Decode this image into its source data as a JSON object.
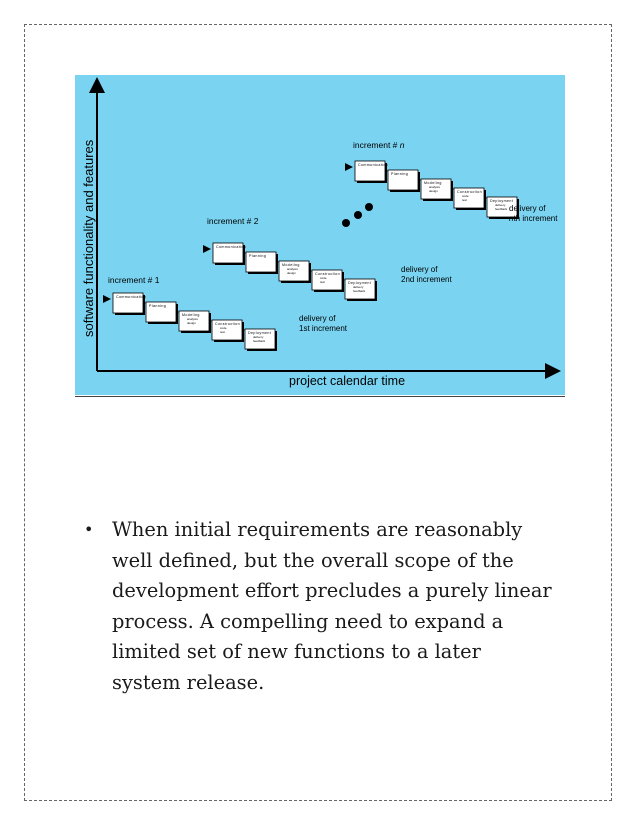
{
  "diagram": {
    "y_axis_label": "software functionality and features",
    "x_axis_label": "project calendar time",
    "increments": [
      {
        "title_prefix": "increment # ",
        "title_num": "1",
        "activities": [
          "Communication",
          "Planning",
          "Modeling",
          "Construction",
          "Deployment"
        ],
        "subs": {
          "modeling": [
            "analysis",
            "design"
          ],
          "construction": [
            "code",
            "test"
          ],
          "deployment": [
            "delivery",
            "feedback"
          ]
        },
        "delivery": [
          "delivery of",
          "1st increment"
        ]
      },
      {
        "title_prefix": "increment # ",
        "title_num": "2",
        "activities": [
          "Communication",
          "Planning",
          "Modeling",
          "Construction",
          "Deployment"
        ],
        "subs": {
          "modeling": [
            "analysis",
            "design"
          ],
          "construction": [
            "code",
            "test"
          ],
          "deployment": [
            "delivery",
            "feedback"
          ]
        },
        "delivery": [
          "delivery of",
          "2nd increment"
        ]
      },
      {
        "title_prefix": "increment # ",
        "title_num": "n",
        "activities": [
          "Communication",
          "Planning",
          "Modeling",
          "Construction",
          "Deployment"
        ],
        "subs": {
          "modeling": [
            "analysis",
            "design"
          ],
          "construction": [
            "code",
            "test"
          ],
          "deployment": [
            "delivery",
            "feedback"
          ]
        },
        "delivery_prefix": "delivery of",
        "delivery_italic": "n",
        "delivery_suffix": "th increment"
      }
    ],
    "colors": {
      "background": "#79d3f1",
      "box": "#ffffff",
      "ink": "#000000"
    }
  },
  "bullet": {
    "marker": "•",
    "text": "When initial requirements are reasonably\nwell defined, but the overall scope of the\ndevelopment effort precludes a purely linear\nprocess.        A compelling need to expand a\nlimited set of new functions to a later\nsystem release."
  }
}
